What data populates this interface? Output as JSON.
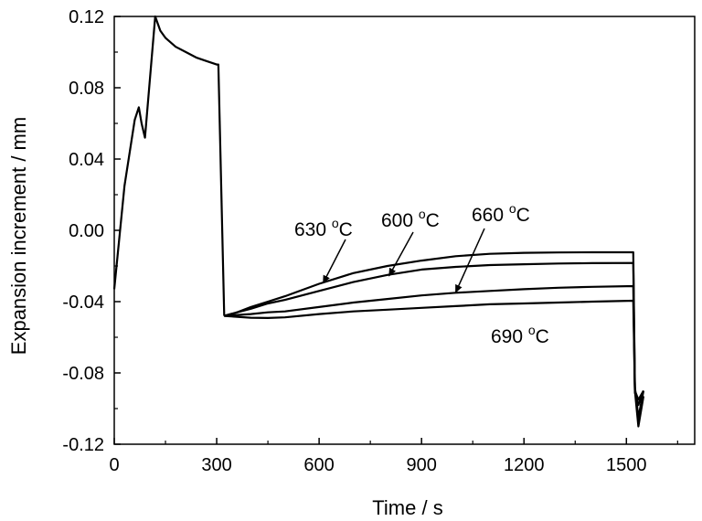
{
  "chart_data": {
    "type": "line",
    "title": "",
    "xlabel": "Time / s",
    "ylabel": "Expansion increment / mm",
    "xlim": [
      0,
      1700
    ],
    "ylim": [
      -0.12,
      0.12
    ],
    "x_ticks": [
      0,
      300,
      600,
      900,
      1200,
      1500
    ],
    "x_tick_labels": [
      "0",
      "300",
      "600",
      "900",
      "1200",
      "1500"
    ],
    "y_ticks": [
      0.12,
      0.08,
      0.04,
      0.0,
      -0.04,
      -0.08,
      -0.12
    ],
    "y_tick_labels": [
      "0.12",
      "0.08",
      "0.04",
      "0.00",
      "-0.04",
      "-0.08",
      "-0.12"
    ],
    "grid": false,
    "legend": "none",
    "line_color": "#000000",
    "common_segment": {
      "x": [
        0,
        30,
        60,
        72,
        80,
        90,
        120,
        135,
        150,
        180,
        210,
        240,
        270,
        300,
        305,
        322
      ],
      "y": [
        -0.033,
        0.025,
        0.062,
        0.069,
        0.06,
        0.052,
        0.12,
        0.112,
        0.108,
        0.103,
        0.1,
        0.097,
        0.095,
        0.093,
        0.093,
        -0.048
      ]
    },
    "series": [
      {
        "label_id": "630",
        "x": [
          322,
          360,
          400,
          450,
          500,
          600,
          700,
          800,
          900,
          1000,
          1100,
          1200,
          1300,
          1400,
          1520,
          1525,
          1535,
          1550
        ],
        "y": [
          -0.048,
          -0.046,
          -0.043,
          -0.04,
          -0.037,
          -0.03,
          -0.024,
          -0.02,
          -0.017,
          -0.0145,
          -0.0132,
          -0.0126,
          -0.0124,
          -0.0123,
          -0.0123,
          -0.088,
          -0.105,
          -0.09
        ]
      },
      {
        "label_id": "600",
        "x": [
          322,
          360,
          400,
          450,
          500,
          600,
          700,
          800,
          900,
          1000,
          1100,
          1200,
          1300,
          1400,
          1520,
          1525,
          1535,
          1550
        ],
        "y": [
          -0.048,
          -0.046,
          -0.044,
          -0.041,
          -0.039,
          -0.034,
          -0.029,
          -0.025,
          -0.022,
          -0.0205,
          -0.0195,
          -0.019,
          -0.0186,
          -0.0184,
          -0.0183,
          -0.09,
          -0.11,
          -0.093
        ]
      },
      {
        "label_id": "660",
        "x": [
          322,
          360,
          400,
          450,
          500,
          600,
          700,
          800,
          900,
          1000,
          1100,
          1200,
          1300,
          1400,
          1520,
          1525,
          1535,
          1550
        ],
        "y": [
          -0.048,
          -0.0475,
          -0.047,
          -0.046,
          -0.0455,
          -0.043,
          -0.0405,
          -0.0385,
          -0.0365,
          -0.035,
          -0.034,
          -0.033,
          -0.0322,
          -0.0317,
          -0.0313,
          -0.091,
          -0.098,
          -0.09
        ]
      },
      {
        "label_id": "690",
        "x": [
          322,
          360,
          400,
          450,
          500,
          600,
          700,
          800,
          900,
          1000,
          1100,
          1200,
          1300,
          1400,
          1520,
          1525,
          1535,
          1550
        ],
        "y": [
          -0.048,
          -0.0485,
          -0.049,
          -0.0492,
          -0.0488,
          -0.047,
          -0.0455,
          -0.0445,
          -0.0435,
          -0.0425,
          -0.0415,
          -0.041,
          -0.0405,
          -0.04,
          -0.0395,
          -0.09,
          -0.095,
          -0.09
        ]
      }
    ],
    "annotations": [
      {
        "label_id": "630",
        "value": "630",
        "unit": "C",
        "sup": "o",
        "arrow_to": {
          "x": 612,
          "y": -0.0295
        }
      },
      {
        "label_id": "600",
        "value": "600",
        "unit": "C",
        "sup": "o",
        "arrow_to": {
          "x": 805,
          "y": -0.0255
        }
      },
      {
        "label_id": "660",
        "value": "660",
        "unit": "C",
        "sup": "o",
        "arrow_to": {
          "x": 1000,
          "y": -0.0348
        }
      },
      {
        "label_id": "690",
        "value": "690",
        "unit": "C",
        "sup": "o",
        "arrow_to": null
      }
    ]
  }
}
